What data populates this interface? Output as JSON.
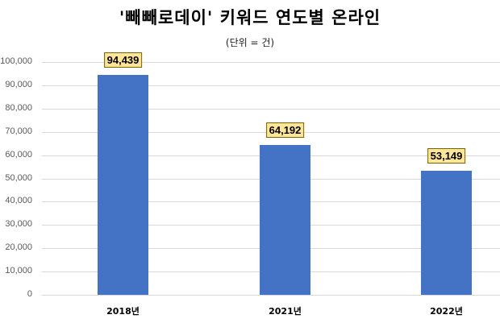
{
  "chart_data": {
    "type": "bar",
    "title": "'빼빼로데이' 키워드 연도별 온라인",
    "subtitle": "(단위 = 건)",
    "categories": [
      "2018년",
      "2021년",
      "2022년"
    ],
    "values": [
      94439,
      64192,
      53149
    ],
    "value_labels": [
      "94,439",
      "64,192",
      "53,149"
    ],
    "xlabel": "",
    "ylabel": "",
    "ylim": [
      0,
      100000
    ],
    "yticks": [
      "0",
      "10,000",
      "20,000",
      "30,000",
      "40,000",
      "50,000",
      "60,000",
      "70,000",
      "80,000",
      "90,000",
      "100,000"
    ],
    "grid": true,
    "legend": "none",
    "colors": {
      "bar": "#4472c4",
      "label_bg": "#ffe699",
      "label_border": "#7f6000",
      "grid": "#d9d9d9"
    }
  }
}
